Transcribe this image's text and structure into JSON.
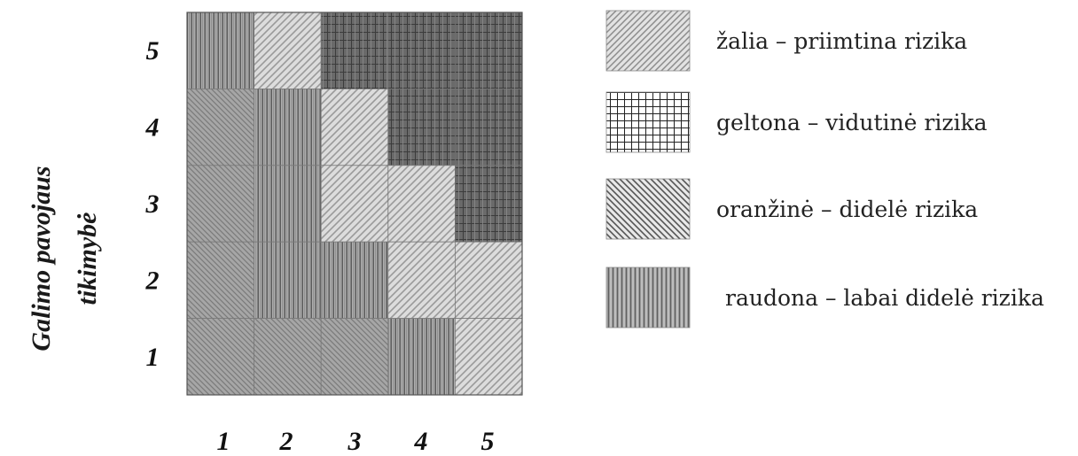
{
  "chart_data": {
    "type": "heatmap",
    "title": "",
    "ylabel_line1": "Galimo pavojaus",
    "ylabel_line2": "tikimybė",
    "xlabel": "",
    "x_ticks": [
      "1",
      "2",
      "3",
      "4",
      "5"
    ],
    "y_ticks": [
      "1",
      "2",
      "3",
      "4",
      "5"
    ],
    "grid": false,
    "legend_position": "right",
    "levels": [
      {
        "key": "green",
        "label": "žalia – priimtina rizika",
        "pattern": "diagonal-right",
        "color": "#9a9a9a"
      },
      {
        "key": "yellow",
        "label": "geltona – vidutinė rizika",
        "pattern": "grid",
        "color": "#4a4a4a"
      },
      {
        "key": "orange",
        "label": "oranžinė – didelė  rizika",
        "pattern": "diagonal-left",
        "color": "#6e6e6e"
      },
      {
        "key": "red",
        "label": "raudona – labai didelė rizika",
        "pattern": "vertical",
        "color": "#5c5c5c"
      }
    ],
    "cells": [
      {
        "x": 1,
        "y": 5,
        "level": "red"
      },
      {
        "x": 2,
        "y": 5,
        "level": "green"
      },
      {
        "x": 3,
        "y": 5,
        "level": "yellow"
      },
      {
        "x": 4,
        "y": 5,
        "level": "yellow"
      },
      {
        "x": 5,
        "y": 5,
        "level": "yellow"
      },
      {
        "x": 1,
        "y": 4,
        "level": "orange"
      },
      {
        "x": 2,
        "y": 4,
        "level": "red"
      },
      {
        "x": 3,
        "y": 4,
        "level": "green"
      },
      {
        "x": 4,
        "y": 4,
        "level": "yellow"
      },
      {
        "x": 5,
        "y": 4,
        "level": "yellow"
      },
      {
        "x": 1,
        "y": 3,
        "level": "orange"
      },
      {
        "x": 2,
        "y": 3,
        "level": "red"
      },
      {
        "x": 3,
        "y": 3,
        "level": "green"
      },
      {
        "x": 4,
        "y": 3,
        "level": "green"
      },
      {
        "x": 5,
        "y": 3,
        "level": "yellow"
      },
      {
        "x": 1,
        "y": 2,
        "level": "orange"
      },
      {
        "x": 2,
        "y": 2,
        "level": "red"
      },
      {
        "x": 3,
        "y": 2,
        "level": "red"
      },
      {
        "x": 4,
        "y": 2,
        "level": "green"
      },
      {
        "x": 5,
        "y": 2,
        "level": "green"
      },
      {
        "x": 1,
        "y": 1,
        "level": "orange"
      },
      {
        "x": 2,
        "y": 1,
        "level": "orange"
      },
      {
        "x": 3,
        "y": 1,
        "level": "orange"
      },
      {
        "x": 4,
        "y": 1,
        "level": "red"
      },
      {
        "x": 5,
        "y": 1,
        "level": "green"
      }
    ]
  }
}
